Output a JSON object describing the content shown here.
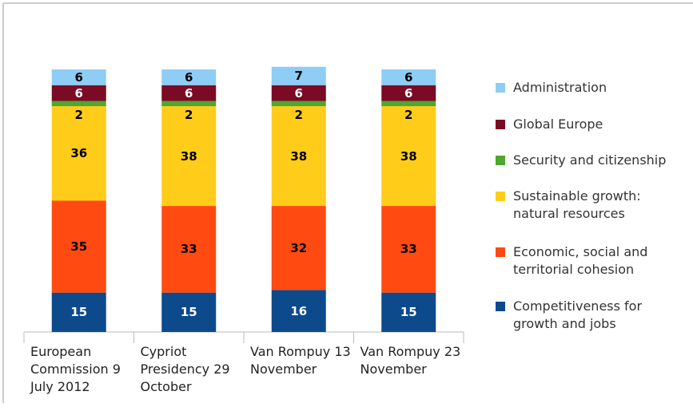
{
  "chart_data": {
    "type": "stacked_bar",
    "categories": [
      "European Commission 9 July 2012",
      "Cypriot Presidency 29 October",
      "Van Rompuy 13 November",
      "Van Rompuy 23 November"
    ],
    "series": [
      {
        "name": "Competitiveness for growth and jobs",
        "color": "#0d4a8c",
        "label_color": "#ffffff",
        "values": [
          15,
          15,
          16,
          15
        ]
      },
      {
        "name": "Economic, social and territorial cohesion",
        "color": "#ff4a12",
        "label_color": "#000000",
        "values": [
          35,
          33,
          32,
          33
        ]
      },
      {
        "name": "Sustainable growth: natural resources",
        "color": "#ffcc1a",
        "label_color": "#000000",
        "values": [
          36,
          38,
          38,
          38
        ]
      },
      {
        "name": "Security and citizenship",
        "color": "#4ea72e",
        "label_color": "#000000",
        "values": [
          2,
          2,
          2,
          2
        ]
      },
      {
        "name": "Global Europe",
        "color": "#7b0a24",
        "label_color": "#ffffff",
        "values": [
          6,
          6,
          6,
          6
        ]
      },
      {
        "name": "Administration",
        "color": "#8ecdf5",
        "label_color": "#000000",
        "values": [
          6,
          6,
          7,
          6
        ]
      }
    ],
    "legend": "right"
  }
}
